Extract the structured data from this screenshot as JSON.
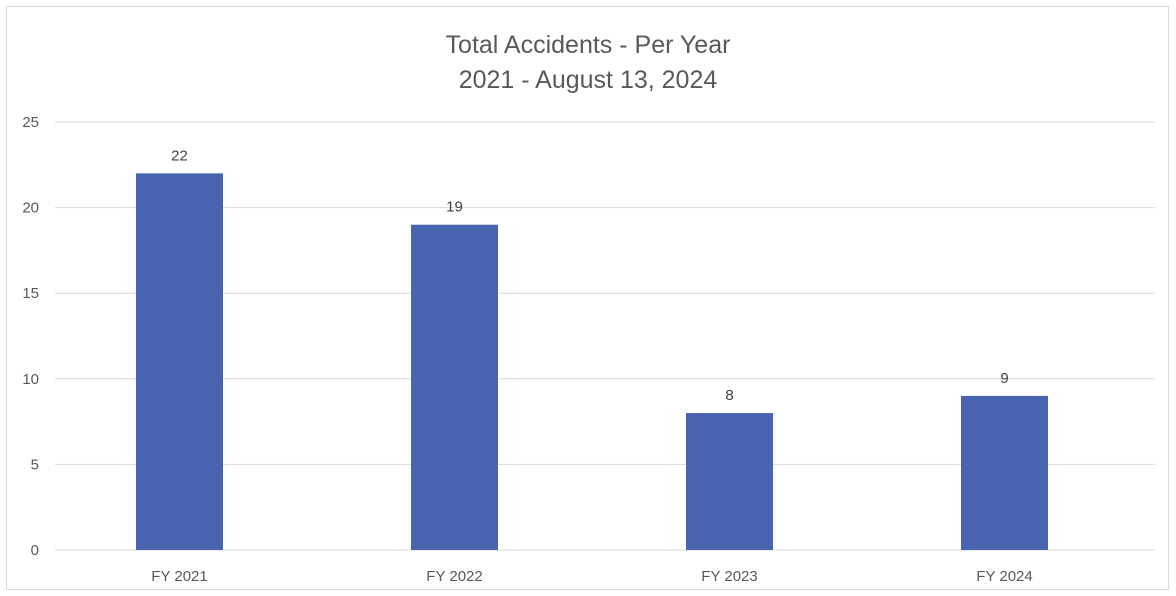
{
  "chart_data": {
    "type": "bar",
    "title": "Total Accidents - Per Year",
    "subtitle": "2021 - August 13, 2024",
    "categories": [
      "FY 2021",
      "FY 2022",
      "FY 2023",
      "FY 2024"
    ],
    "values": [
      22,
      19,
      8,
      9
    ],
    "data_labels": [
      "22",
      "19",
      "8",
      "9"
    ],
    "xlabel": "",
    "ylabel": "",
    "ylim": [
      0,
      25
    ],
    "yticks": [
      "0",
      "5",
      "10",
      "15",
      "20",
      "25"
    ],
    "grid": true,
    "legend": "none",
    "bar_color": "#4864ae",
    "gridline_color": "#d9d9d9",
    "text_color": "#595959"
  }
}
